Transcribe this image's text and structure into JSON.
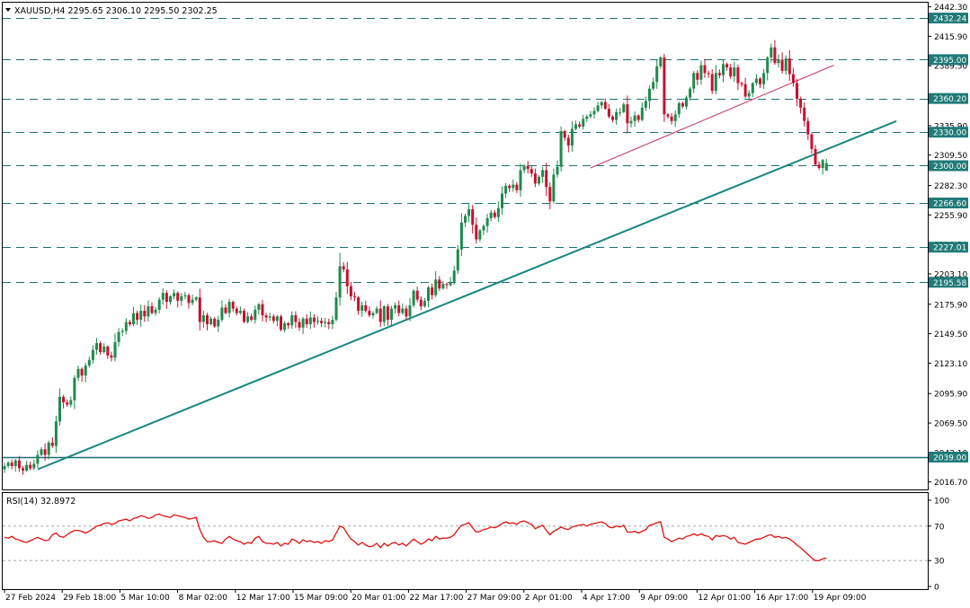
{
  "header": {
    "symbol_line": "XAUUSD,H4  2295.65 2306.10 2295.50 2302.25",
    "rsi_label": "RSI(14) 32.8972"
  },
  "colors": {
    "bull_candle": "#1f8a4c",
    "bear_candle": "#c8102e",
    "level_line": "#1c6f73",
    "level_badge": "#1f7a78",
    "trendline": "#16867f",
    "channel_line": "#c8406a",
    "rsi_line": "#e01010"
  },
  "chart_data": [
    {
      "type": "candlestick",
      "symbol": "XAUUSD",
      "timeframe": "H4",
      "last_ohlc": {
        "open": 2295.65,
        "high": 2306.1,
        "low": 2295.5,
        "close": 2302.25
      },
      "ylim": [
        2010,
        2446
      ],
      "y_ticks": [
        "2442.30",
        "2415.90",
        "2389.50",
        "2335.90",
        "2309.50",
        "2282.30",
        "2255.90",
        "2229.50",
        "2203.10",
        "2175.90",
        "2149.50",
        "2123.10",
        "2095.90",
        "2069.50",
        "2043.10",
        "2016.70"
      ],
      "x_ticks": [
        "27 Feb 2024",
        "29 Feb 18:00",
        "5 Mar 10:00",
        "8 Mar 02:00",
        "12 Mar 17:00",
        "15 Mar 09:00",
        "20 Mar 01:00",
        "22 Mar 17:00",
        "27 Mar 09:00",
        "2 Apr 01:00",
        "4 Apr 17:00",
        "9 Apr 09:00",
        "12 Apr 01:00",
        "16 Apr 17:00",
        "19 Apr 09:00"
      ],
      "horizontal_levels": [
        {
          "price": 2432.24,
          "label": "2432.24",
          "style": "dashed"
        },
        {
          "price": 2395.0,
          "label": "2395.00",
          "style": "dashed"
        },
        {
          "price": 2360.2,
          "label": "2360.20",
          "style": "dashed"
        },
        {
          "price": 2330.0,
          "label": "2330.00",
          "style": "dashed"
        },
        {
          "price": 2300.0,
          "label": "2300.00",
          "style": "dashed"
        },
        {
          "price": 2266.6,
          "label": "2266.60",
          "style": "dashed"
        },
        {
          "price": 2227.01,
          "label": "2227.01",
          "style": "dashed"
        },
        {
          "price": 2195.58,
          "label": "2195.58",
          "style": "dashed"
        },
        {
          "price": 2039.0,
          "label": "2039.00",
          "style": "solid"
        }
      ],
      "trendlines": [
        {
          "name": "rising-support",
          "from": {
            "bar": 9,
            "price": 2028
          },
          "to": {
            "bar": 242,
            "price": 2340
          }
        },
        {
          "name": "upper-channel",
          "from": {
            "bar": 159,
            "price": 2298
          },
          "to": {
            "bar": 225,
            "price": 2390
          }
        }
      ],
      "closes": [
        2031,
        2034,
        2031,
        2036,
        2029,
        2027,
        2032,
        2029,
        2033,
        2041,
        2046,
        2041,
        2052,
        2049,
        2071,
        2093,
        2088,
        2086,
        2090,
        2110,
        2118,
        2112,
        2121,
        2126,
        2135,
        2141,
        2133,
        2138,
        2130,
        2128,
        2142,
        2151,
        2152,
        2160,
        2158,
        2168,
        2162,
        2170,
        2165,
        2174,
        2168,
        2171,
        2180,
        2186,
        2178,
        2183,
        2186,
        2179,
        2183,
        2184,
        2177,
        2180,
        2182,
        2160,
        2166,
        2158,
        2163,
        2156,
        2162,
        2173,
        2168,
        2178,
        2172,
        2168,
        2170,
        2160,
        2165,
        2162,
        2171,
        2176,
        2166,
        2164,
        2165,
        2161,
        2165,
        2153,
        2159,
        2157,
        2166,
        2160,
        2155,
        2163,
        2158,
        2164,
        2160,
        2161,
        2159,
        2160,
        2158,
        2162,
        2182,
        2210,
        2207,
        2192,
        2183,
        2182,
        2170,
        2175,
        2170,
        2166,
        2168,
        2172,
        2160,
        2174,
        2162,
        2172,
        2175,
        2168,
        2172,
        2165,
        2175,
        2188,
        2180,
        2174,
        2179,
        2191,
        2184,
        2198,
        2190,
        2194,
        2193,
        2196,
        2206,
        2225,
        2249,
        2255,
        2261,
        2247,
        2234,
        2242,
        2246,
        2253,
        2258,
        2254,
        2262,
        2275,
        2282,
        2280,
        2283,
        2278,
        2296,
        2300,
        2297,
        2293,
        2284,
        2290,
        2296,
        2281,
        2268,
        2292,
        2299,
        2331,
        2325,
        2318,
        2333,
        2337,
        2335,
        2342,
        2344,
        2346,
        2349,
        2354,
        2357,
        2351,
        2344,
        2341,
        2348,
        2348,
        2355,
        2338,
        2340,
        2345,
        2341,
        2352,
        2358,
        2369,
        2375,
        2389,
        2397,
        2346,
        2344,
        2340,
        2346,
        2356,
        2353,
        2361,
        2369,
        2383,
        2377,
        2390,
        2383,
        2382,
        2367,
        2383,
        2381,
        2391,
        2388,
        2380,
        2388,
        2374,
        2373,
        2362,
        2365,
        2374,
        2378,
        2373,
        2383,
        2397,
        2406,
        2392,
        2395,
        2385,
        2396,
        2382,
        2374,
        2360,
        2352,
        2340,
        2328,
        2315,
        2301,
        2298,
        2305,
        2302
      ],
      "rsi": {
        "period": 14,
        "value": 32.8972,
        "levels": [
          70,
          30
        ],
        "ylim": [
          0,
          100
        ],
        "y_ticks": [
          "100",
          "70",
          "30",
          "0"
        ],
        "values": [
          57,
          56,
          58,
          55,
          54,
          52,
          51,
          53,
          55,
          57,
          55,
          53,
          54,
          60,
          62,
          58,
          57,
          60,
          63,
          65,
          65,
          64,
          62,
          64,
          67,
          70,
          71,
          73,
          74,
          72,
          73,
          76,
          77,
          78,
          76,
          79,
          80,
          82,
          81,
          79,
          80,
          83,
          84,
          82,
          81,
          80,
          83,
          82,
          81,
          80,
          78,
          79,
          80,
          66,
          57,
          52,
          52,
          53,
          51,
          50,
          55,
          58,
          55,
          53,
          52,
          49,
          51,
          50,
          56,
          58,
          52,
          50,
          50,
          49,
          51,
          47,
          50,
          49,
          55,
          53,
          50,
          54,
          52,
          53,
          51,
          52,
          50,
          53,
          52,
          54,
          62,
          70,
          68,
          61,
          55,
          52,
          48,
          51,
          48,
          46,
          47,
          50,
          45,
          50,
          47,
          50,
          51,
          48,
          50,
          47,
          51,
          55,
          52,
          49,
          51,
          55,
          53,
          58,
          55,
          56,
          56,
          57,
          60,
          66,
          71,
          72,
          74,
          68,
          63,
          64,
          66,
          67,
          69,
          68,
          70,
          73,
          75,
          73,
          74,
          72,
          75,
          76,
          74,
          72,
          67,
          69,
          71,
          65,
          60,
          64,
          66,
          69,
          67,
          66,
          69,
          70,
          71,
          72,
          70,
          72,
          73,
          74,
          75,
          73,
          69,
          68,
          70,
          69,
          71,
          63,
          63,
          64,
          62,
          64,
          66,
          71,
          72,
          74,
          75,
          57,
          55,
          52,
          54,
          56,
          55,
          58,
          59,
          61,
          59,
          61,
          59,
          58,
          54,
          59,
          58,
          59,
          58,
          55,
          57,
          51,
          50,
          49,
          51,
          53,
          55,
          55,
          57,
          59,
          60,
          57,
          58,
          56,
          57,
          55,
          52,
          48,
          45,
          41,
          37,
          33,
          30,
          30,
          32,
          33
        ]
      }
    }
  ]
}
